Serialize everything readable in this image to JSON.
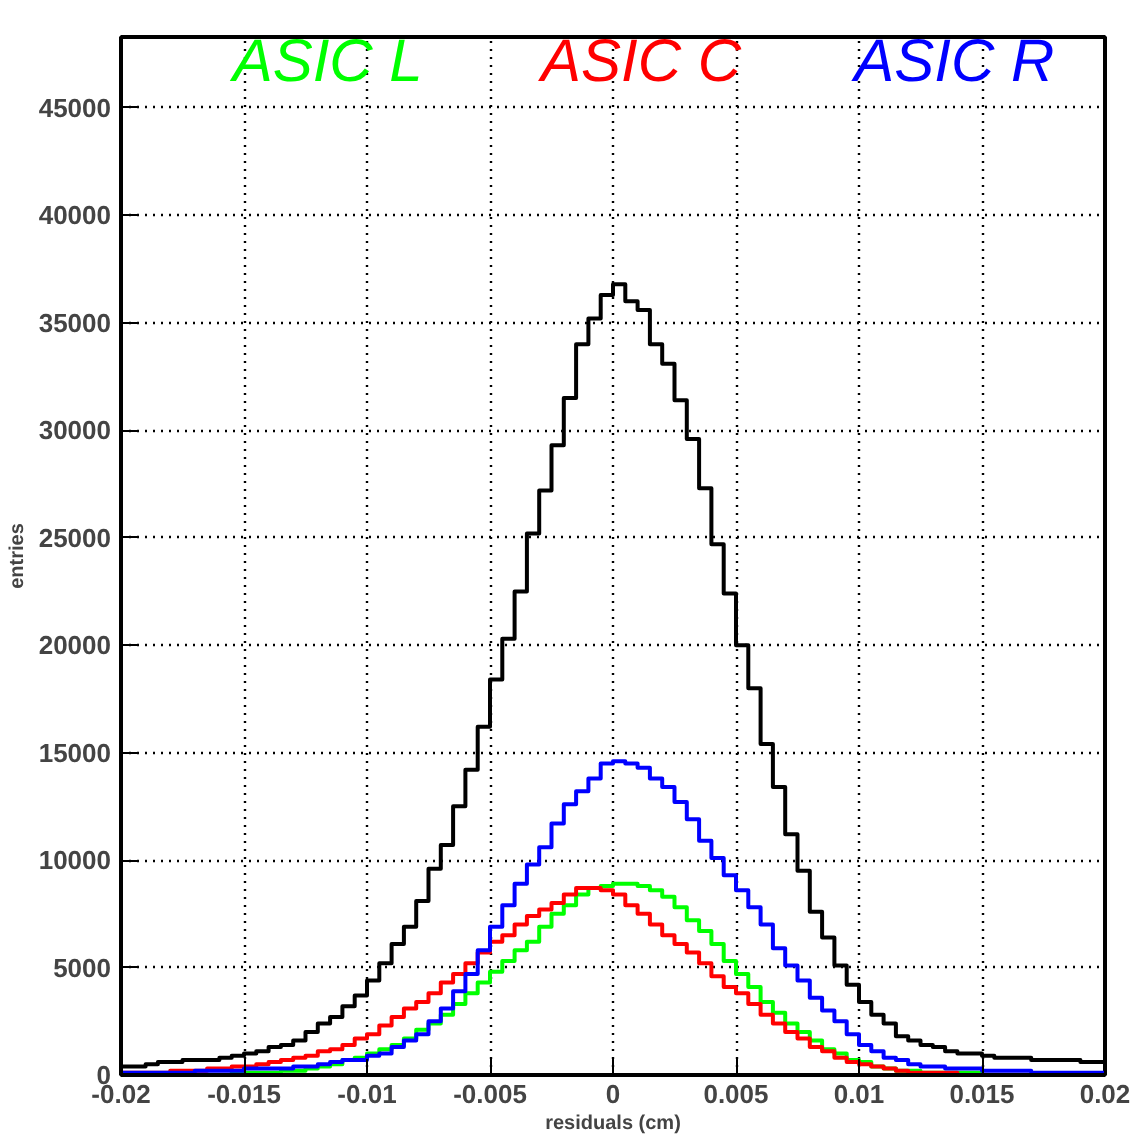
{
  "chart_data": {
    "type": "histogram",
    "xlabel": "residuals (cm)",
    "ylabel": "entries",
    "xlim": [
      -0.02,
      0.02
    ],
    "ylim": [
      0,
      48300
    ],
    "xticks": [
      -0.02,
      -0.015,
      -0.01,
      -0.005,
      0,
      0.005,
      0.01,
      0.015,
      0.02
    ],
    "yticks": [
      0,
      5000,
      10000,
      15000,
      20000,
      25000,
      30000,
      35000,
      40000,
      45000
    ],
    "grid": true,
    "bins": [
      -0.02,
      -0.0195,
      -0.019,
      -0.0185,
      -0.018,
      -0.0175,
      -0.017,
      -0.0165,
      -0.016,
      -0.0155,
      -0.015,
      -0.0145,
      -0.014,
      -0.0135,
      -0.013,
      -0.0125,
      -0.012,
      -0.0115,
      -0.011,
      -0.0105,
      -0.01,
      -0.0095,
      -0.009,
      -0.0085,
      -0.008,
      -0.0075,
      -0.007,
      -0.0065,
      -0.006,
      -0.0055,
      -0.005,
      -0.0045,
      -0.004,
      -0.0035,
      -0.003,
      -0.0025,
      -0.002,
      -0.0015,
      -0.001,
      -0.0005,
      0,
      0.0005,
      0.001,
      0.0015,
      0.002,
      0.0025,
      0.003,
      0.0035,
      0.004,
      0.0045,
      0.005,
      0.0055,
      0.006,
      0.0065,
      0.007,
      0.0075,
      0.008,
      0.0085,
      0.009,
      0.0095,
      0.01,
      0.0105,
      0.011,
      0.0115,
      0.012,
      0.0125,
      0.013,
      0.0135,
      0.014,
      0.0145,
      0.015,
      0.0155,
      0.016,
      0.0165,
      0.017,
      0.0175,
      0.018,
      0.0185,
      0.019,
      0.0195,
      0.02
    ],
    "series": [
      {
        "color": "#000000",
        "values": [
          400,
          400,
          500,
          600,
          600,
          700,
          700,
          700,
          800,
          900,
          1000,
          1100,
          1300,
          1400,
          1600,
          2000,
          2400,
          2700,
          3200,
          3700,
          4400,
          5200,
          6100,
          6900,
          8100,
          9600,
          10700,
          12500,
          14200,
          16200,
          18400,
          20300,
          22500,
          25200,
          27200,
          29300,
          31500,
          34000,
          35200,
          36300,
          36800,
          36000,
          35600,
          34000,
          33100,
          31400,
          29600,
          27300,
          24700,
          22400,
          20000,
          18000,
          15400,
          13400,
          11200,
          9500,
          7600,
          6400,
          5100,
          4200,
          3400,
          2800,
          2400,
          1800,
          1600,
          1400,
          1300,
          1100,
          1000,
          1000,
          900,
          800,
          800,
          800,
          700,
          700,
          700,
          700,
          600,
          600
        ]
      },
      {
        "name": "ASIC L",
        "color": "#00ff00",
        "values": [
          0,
          0,
          0,
          0,
          0,
          0,
          0,
          0,
          0,
          100,
          100,
          100,
          100,
          200,
          200,
          300,
          400,
          500,
          700,
          800,
          1000,
          1200,
          1400,
          1700,
          2100,
          2400,
          2800,
          3300,
          3800,
          4300,
          4800,
          5300,
          5800,
          6200,
          6900,
          7500,
          7900,
          8400,
          8700,
          8800,
          8900,
          8900,
          8800,
          8600,
          8300,
          7800,
          7200,
          6700,
          6100,
          5300,
          4700,
          4100,
          3400,
          2900,
          2400,
          2000,
          1600,
          1200,
          1000,
          700,
          600,
          400,
          300,
          200,
          200,
          100,
          100,
          100,
          100,
          100,
          0,
          0,
          0,
          0,
          0,
          0,
          0,
          0,
          0,
          0
        ]
      },
      {
        "name": "ASIC C",
        "color": "#ff0000",
        "values": [
          100,
          100,
          100,
          100,
          200,
          200,
          200,
          300,
          300,
          400,
          400,
          500,
          600,
          700,
          800,
          900,
          1100,
          1200,
          1400,
          1700,
          1900,
          2300,
          2700,
          3100,
          3400,
          3800,
          4300,
          4700,
          5200,
          5700,
          6200,
          6500,
          7000,
          7400,
          7700,
          8000,
          8400,
          8700,
          8700,
          8600,
          8400,
          7900,
          7500,
          7000,
          6500,
          6100,
          5700,
          5200,
          4600,
          4100,
          3800,
          3300,
          2800,
          2400,
          2000,
          1700,
          1300,
          1100,
          800,
          600,
          500,
          400,
          300,
          200,
          100,
          100,
          100,
          100,
          0,
          0,
          0,
          0,
          0,
          0,
          0,
          0,
          0,
          0,
          0,
          0
        ]
      },
      {
        "name": "ASIC R",
        "color": "#0000ff",
        "values": [
          100,
          100,
          100,
          100,
          100,
          100,
          200,
          200,
          200,
          200,
          300,
          300,
          300,
          300,
          400,
          400,
          500,
          600,
          700,
          700,
          900,
          1000,
          1300,
          1600,
          1900,
          2500,
          3100,
          3900,
          4700,
          5800,
          6900,
          7900,
          8900,
          9800,
          10600,
          11700,
          12600,
          13200,
          13800,
          14500,
          14600,
          14500,
          14300,
          13800,
          13400,
          12700,
          11900,
          10900,
          10100,
          9300,
          8600,
          7800,
          7000,
          5900,
          5100,
          4400,
          3600,
          3000,
          2500,
          1900,
          1400,
          1100,
          800,
          700,
          500,
          400,
          400,
          300,
          300,
          300,
          200,
          200,
          200,
          200,
          100,
          100,
          100,
          100,
          100,
          100
        ]
      }
    ]
  }
}
